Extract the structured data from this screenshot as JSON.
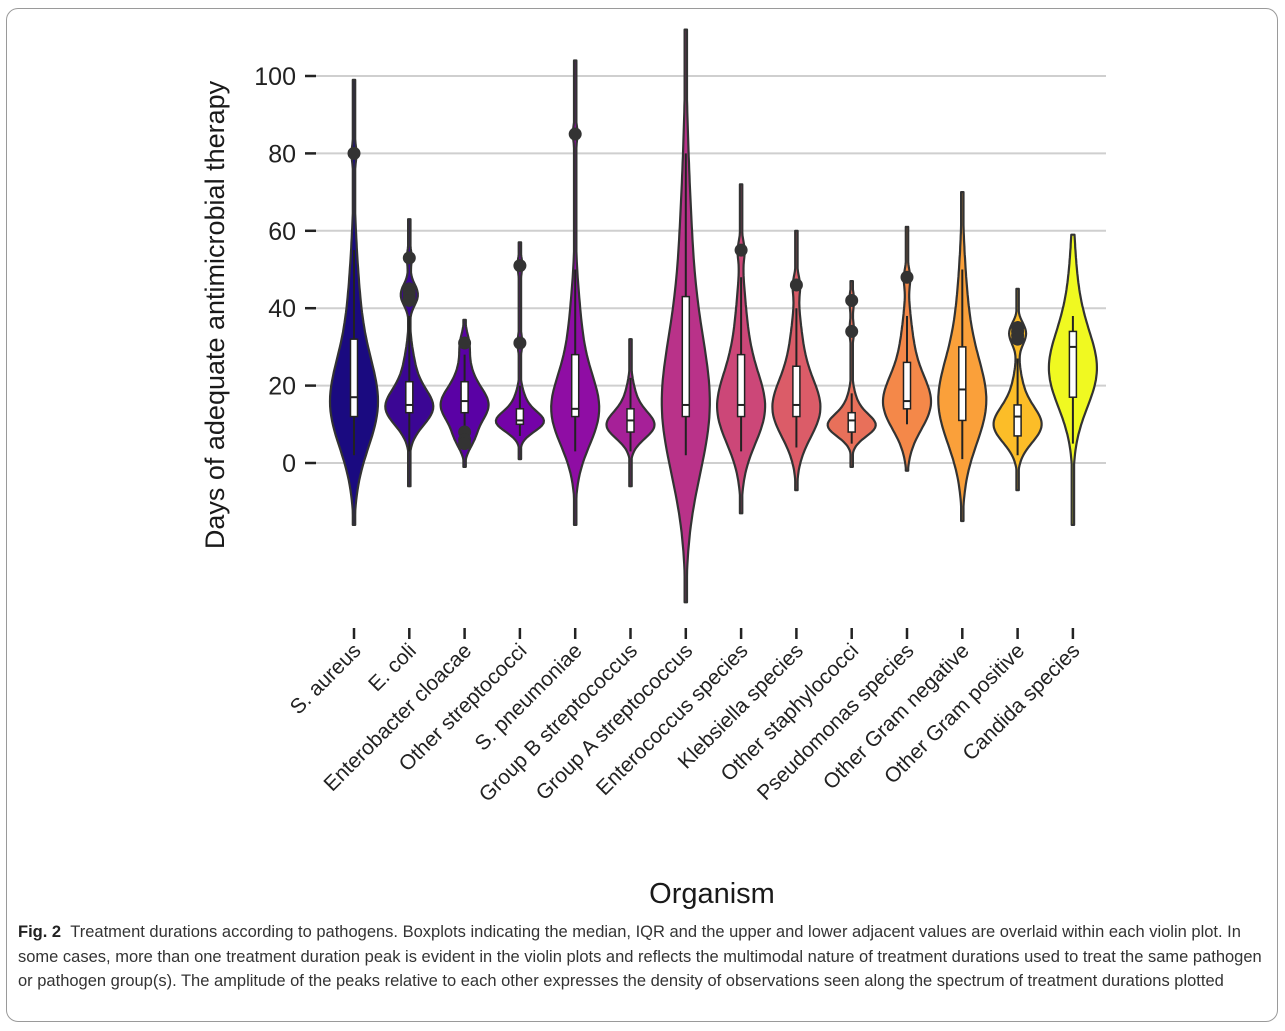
{
  "chart_data": {
    "type": "violin",
    "xlabel": "Organism",
    "ylabel": "Days of adequate antimicrobial therapy",
    "yticks": [
      0,
      20,
      40,
      60,
      80,
      100
    ],
    "ylim": [
      -36,
      112
    ],
    "grid": "horizontal",
    "legend": "none",
    "categories": [
      {
        "name": "S. aureus",
        "color": "#1a0a80",
        "min": -16,
        "max": 99,
        "q1": 12,
        "median": 17,
        "q3": 32,
        "whisker_low": 2,
        "whisker_high": 55,
        "outliers": [
          80
        ]
      },
      {
        "name": "E. coli",
        "color": "#3b0694",
        "min": -6,
        "max": 63,
        "q1": 13,
        "median": 15,
        "q3": 21,
        "whisker_low": 3,
        "whisker_high": 38,
        "outliers": [
          53,
          45,
          44,
          43,
          42
        ]
      },
      {
        "name": "Enterobacter cloacae",
        "color": "#5a01a5",
        "min": -1,
        "max": 37,
        "q1": 13,
        "median": 16,
        "q3": 21,
        "whisker_low": 9,
        "whisker_high": 28,
        "outliers": [
          31,
          8,
          6,
          5
        ]
      },
      {
        "name": "Other streptococci",
        "color": "#7402a8",
        "min": 1,
        "max": 57,
        "q1": 10,
        "median": 11,
        "q3": 14,
        "whisker_low": 7,
        "whisker_high": 20,
        "outliers": [
          51,
          31
        ]
      },
      {
        "name": "S. pneumoniae",
        "color": "#8f0da4",
        "min": -16,
        "max": 104,
        "q1": 12,
        "median": 14,
        "q3": 28,
        "whisker_low": 3,
        "whisker_high": 50,
        "outliers": [
          85
        ]
      },
      {
        "name": "Group B streptococcus",
        "color": "#a62098",
        "min": -6,
        "max": 32,
        "q1": 8,
        "median": 11,
        "q3": 14,
        "whisker_low": 3,
        "whisker_high": 22,
        "outliers": []
      },
      {
        "name": "Group A streptococcus",
        "color": "#b93289",
        "min": -36,
        "max": 112,
        "q1": 12,
        "median": 15,
        "q3": 43,
        "whisker_low": 2,
        "whisker_high": 80,
        "outliers": []
      },
      {
        "name": "Enterococcus species",
        "color": "#cc4778",
        "min": -13,
        "max": 72,
        "q1": 12,
        "median": 15,
        "q3": 28,
        "whisker_low": 3,
        "whisker_high": 48,
        "outliers": [
          55
        ]
      },
      {
        "name": "Klebsiella species",
        "color": "#db5c68",
        "min": -7,
        "max": 60,
        "q1": 12,
        "median": 15,
        "q3": 25,
        "whisker_low": 4,
        "whisker_high": 40,
        "outliers": [
          46
        ]
      },
      {
        "name": "Other staphylococci",
        "color": "#e8705a",
        "min": -1,
        "max": 47,
        "q1": 8,
        "median": 11,
        "q3": 13,
        "whisker_low": 5,
        "whisker_high": 18,
        "outliers": [
          42,
          34
        ]
      },
      {
        "name": "Pseudomonas species",
        "color": "#f48849",
        "min": -2,
        "max": 61,
        "q1": 14,
        "median": 16,
        "q3": 26,
        "whisker_low": 10,
        "whisker_high": 38,
        "outliers": [
          48
        ]
      },
      {
        "name": "Other Gram negative",
        "color": "#faa03a",
        "min": -15,
        "max": 70,
        "q1": 11,
        "median": 19,
        "q3": 30,
        "whisker_low": 1,
        "whisker_high": 50,
        "outliers": []
      },
      {
        "name": "Other Gram positive",
        "color": "#fcbd28",
        "min": -7,
        "max": 45,
        "q1": 7,
        "median": 12,
        "q3": 15,
        "whisker_low": 2,
        "whisker_high": 27,
        "outliers": [
          35,
          34,
          33,
          32
        ]
      },
      {
        "name": "Candida species",
        "color": "#f0f921",
        "min": -16,
        "max": 59,
        "q1": 17,
        "median": 30,
        "q3": 34,
        "whisker_low": 5,
        "whisker_high": 38,
        "outliers": []
      }
    ]
  },
  "caption": {
    "label": "Fig. 2",
    "text": "Treatment durations according to pathogens. Boxplots indicating the median, IQR and the upper and lower adjacent values are overlaid within each violin plot. In some cases, more than one treatment duration peak is evident in the violin plots and reflects the multimodal nature of treatment durations used to treat the same pathogen or pathogen group(s). The amplitude of the peaks relative to each other expresses the density of observations seen along the spectrum of treatment durations plotted"
  }
}
